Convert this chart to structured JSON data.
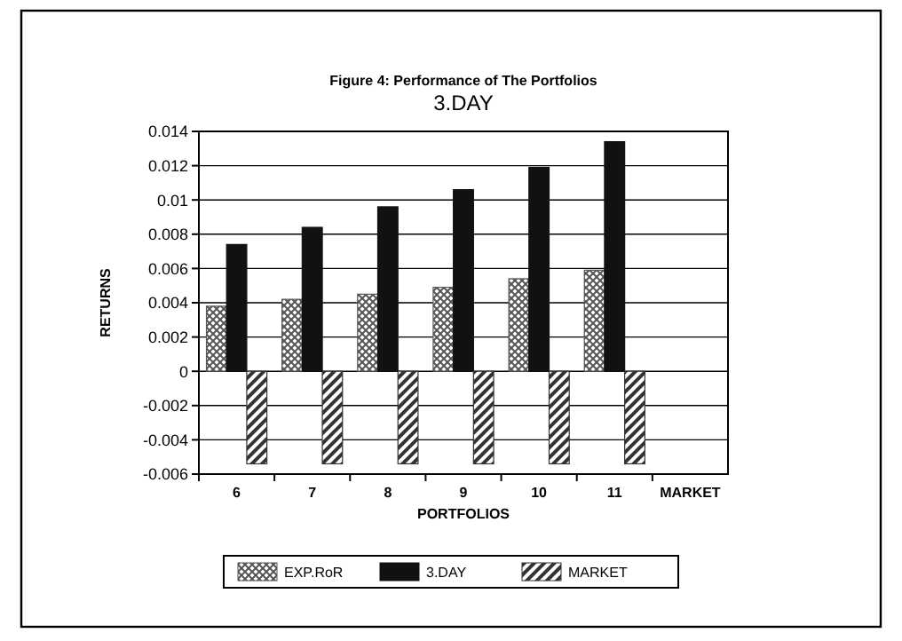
{
  "chart_data": {
    "type": "bar",
    "title": "Figure 4: Performance of The Portfolios",
    "subtitle": "3.DAY",
    "xlabel": "PORTFOLIOS",
    "ylabel": "RETURNS",
    "categories": [
      "6",
      "7",
      "8",
      "9",
      "10",
      "11",
      "MARKET"
    ],
    "series": [
      {
        "name": "EXP.RoR",
        "color": "#555555",
        "values": [
          0.0038,
          0.0042,
          0.0045,
          0.0049,
          0.0054,
          0.0059,
          null
        ]
      },
      {
        "name": "3.DAY",
        "color": "#111111",
        "values": [
          0.0074,
          0.0084,
          0.0096,
          0.0106,
          0.0119,
          0.0134,
          null
        ]
      },
      {
        "name": "MARKET",
        "color": "#333333",
        "values": [
          -0.0054,
          -0.0054,
          -0.0054,
          -0.0054,
          -0.0054,
          -0.0054,
          null
        ]
      }
    ],
    "ylim": [
      -0.006,
      0.014
    ],
    "yticks": [
      {
        "value": -0.006,
        "label": "-0.006"
      },
      {
        "value": -0.004,
        "label": "-0.004"
      },
      {
        "value": -0.002,
        "label": "-0.002"
      },
      0,
      {
        "value": 0.002,
        "label": "0.002"
      },
      {
        "value": 0.004,
        "label": "0.004"
      },
      {
        "value": 0.006,
        "label": "0.006"
      },
      {
        "value": 0.008,
        "label": "0.008"
      },
      {
        "value": 0.01,
        "label": "0.01"
      },
      {
        "value": 0.012,
        "label": "0.012"
      },
      {
        "value": 0.014,
        "label": "0.014"
      }
    ],
    "grid": "y",
    "legend": "bottom"
  }
}
